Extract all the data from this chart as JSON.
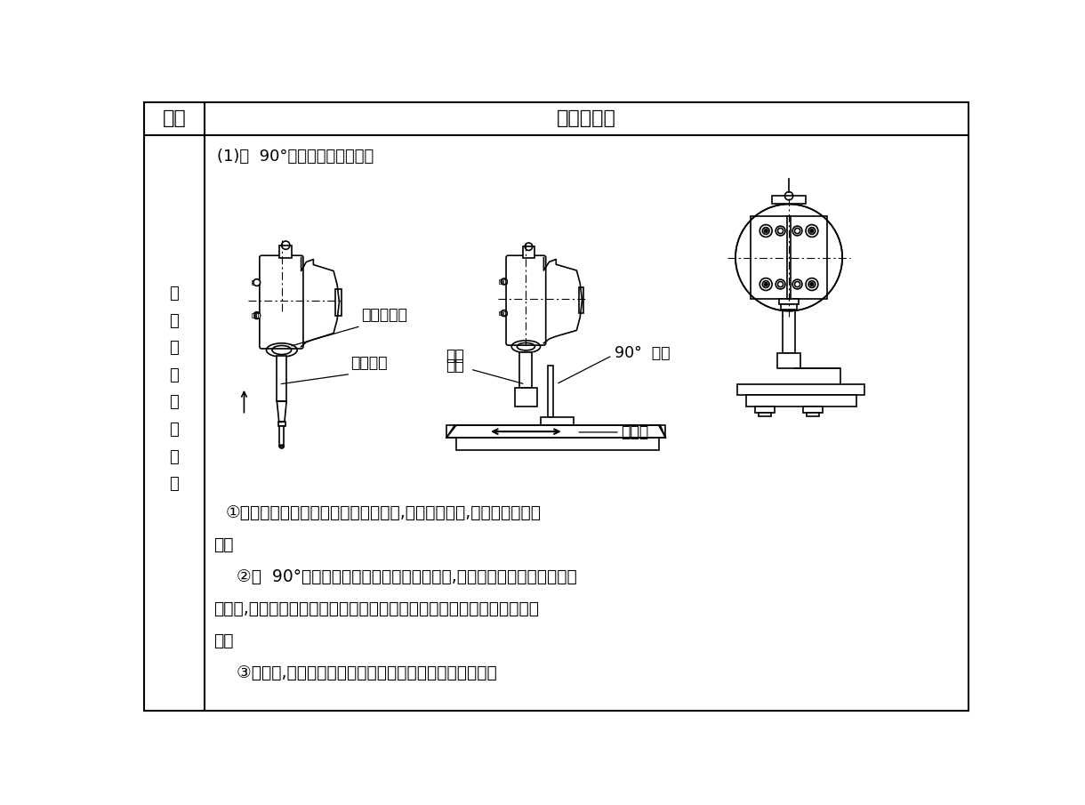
{
  "title_col1": "类别",
  "title_col2": "图示与说明",
  "left_text": "立\n铣\n头\n零\n位\n的\n校\n正",
  "subtitle": "(1)用  90°角尺和锥度心轴校正",
  "text1_a": "①选用与主轴锥孔锥度相同的锥柄心轴,擦净接合面后,将心轴插人主轴",
  "text1_b": "锥孔",
  "text2_a": "  ②将  90°角尺尺座底面紧贴在工作台台面上,用尺苗外测量面靠向心轴圆",
  "text2_b": "柱表面,观察缝隙是否均匀或密合来确定立铣头主轴轴线与工作台台面是否",
  "text2_c": "垂直",
  "text3": "  ③校正时,应在工作台进给方向的平行和垂直两个位置进行",
  "label1": "立铣头主轴",
  "label2": "锥柄心轴",
  "label3a": "锥柄",
  "label3b": "心轴",
  "label4": "90°  角尺",
  "label5": "工作台",
  "bg_color": "#ffffff",
  "line_color": "#000000",
  "text_color": "#000000"
}
